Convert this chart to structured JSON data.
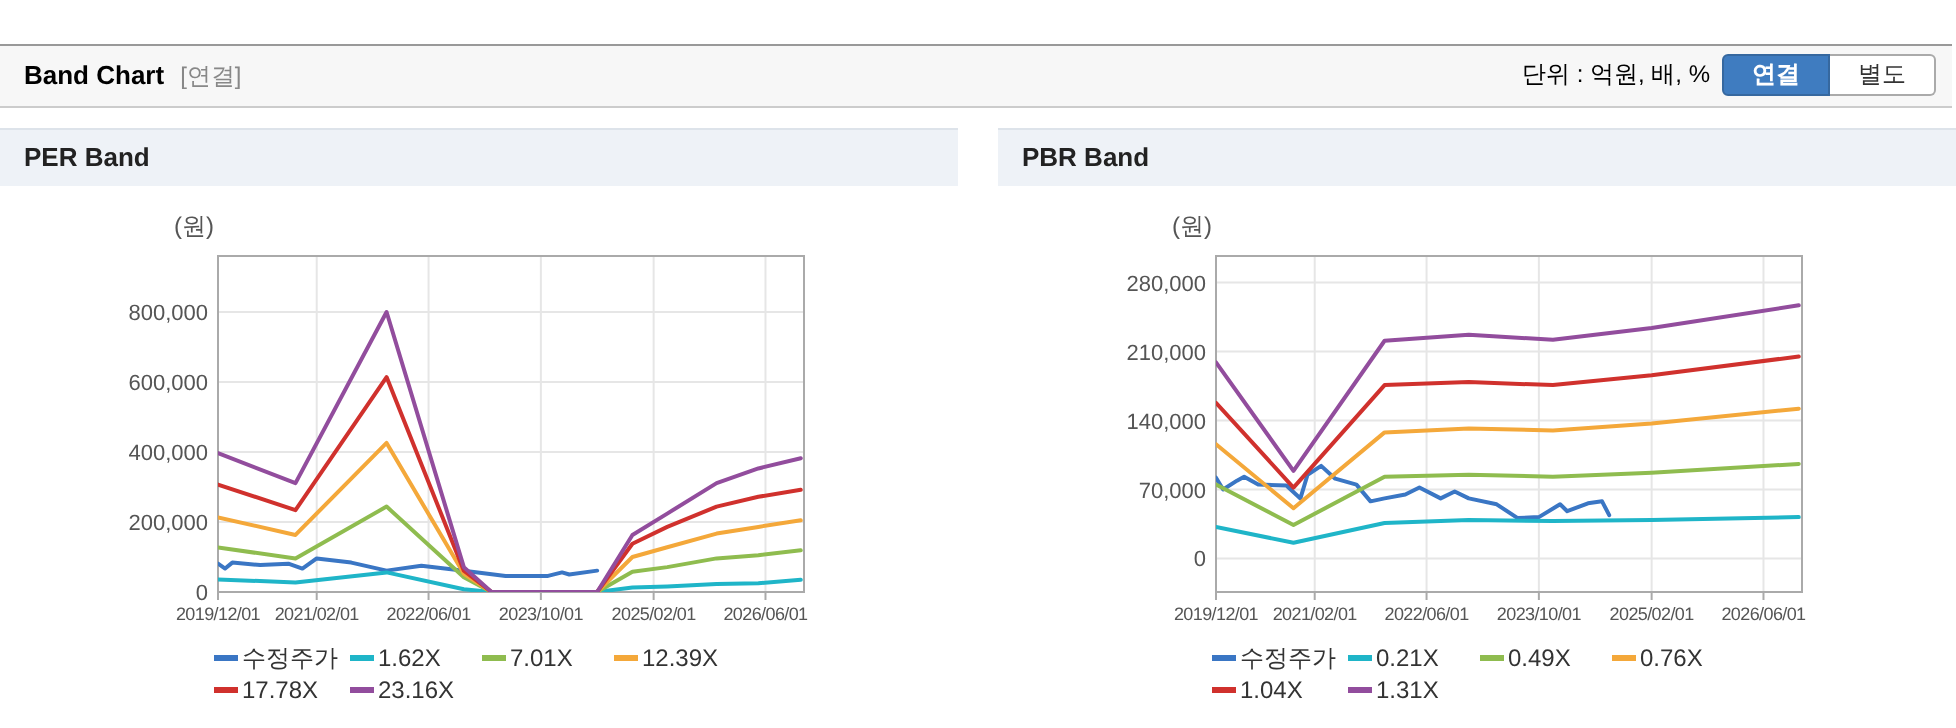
{
  "chart_data": [
    {
      "type": "other",
      "title": "Band Chart",
      "annotations": [
        "[연결]",
        "단위 : 억원, 배, %",
        "연결",
        "별도"
      ]
    },
    {
      "type": "line",
      "title": "PER Band",
      "ylabel": "(원)",
      "legend": "bottom",
      "grid": true,
      "xlim": [
        "2019-12-01",
        "2026-11-15"
      ],
      "ylim": [
        0,
        960000
      ],
      "xticks": [
        {
          "value": "2019-12-01",
          "label": "2019/12/01"
        },
        {
          "value": "2021-02-01",
          "label": "2021/02/01"
        },
        {
          "value": "2022-06-01",
          "label": "2022/06/01"
        },
        {
          "value": "2023-10-01",
          "label": "2023/10/01"
        },
        {
          "value": "2025-02-01",
          "label": "2025/02/01"
        },
        {
          "value": "2026-06-01",
          "label": "2026/06/01"
        }
      ],
      "yticks": [
        0,
        {
          "value": 200000,
          "label": "200,000"
        },
        {
          "value": 400000,
          "label": "400,000"
        },
        {
          "value": 600000,
          "label": "600,000"
        },
        {
          "value": 800000,
          "label": "800,000"
        }
      ],
      "series": [
        {
          "name": "수정주가",
          "color": "#3a76c4",
          "x": [
            "2019-12",
            "2020-01",
            "2020-02",
            "2020-06",
            "2020-10",
            "2020-12",
            "2021-02",
            "2021-07",
            "2021-12",
            "2022-05",
            "2022-11",
            "2023-05",
            "2023-11",
            "2024-01",
            "2024-02",
            "2024-06"
          ],
          "values": [
            81000,
            67000,
            84000,
            77000,
            81000,
            67000,
            96000,
            84000,
            61000,
            75000,
            61000,
            46000,
            46000,
            56000,
            50000,
            61000
          ]
        },
        {
          "name": "1.62X",
          "color": "#1fb5c8",
          "x": [
            "2019-12",
            "2020-11",
            "2021-12",
            "2022-11",
            "2023-03",
            "2024-06",
            "2024-11",
            "2025-04",
            "2025-11",
            "2026-05",
            "2026-11"
          ],
          "values": [
            36000,
            27000,
            56000,
            8000,
            0,
            0,
            13000,
            16000,
            23000,
            25000,
            35000
          ]
        },
        {
          "name": "7.01X",
          "color": "#8fbc4f",
          "x": [
            "2019-12",
            "2020-11",
            "2021-12",
            "2022-11",
            "2023-03",
            "2024-06",
            "2024-11",
            "2025-04",
            "2025-11",
            "2026-05",
            "2026-11"
          ],
          "values": [
            127000,
            96000,
            244000,
            42000,
            0,
            0,
            58000,
            71000,
            96000,
            105000,
            119000
          ]
        },
        {
          "name": "12.39X",
          "color": "#f4a83a",
          "x": [
            "2019-12",
            "2020-11",
            "2021-12",
            "2022-11",
            "2023-03",
            "2024-06",
            "2024-11",
            "2025-04",
            "2025-11",
            "2026-05",
            "2026-11"
          ],
          "values": [
            213000,
            163000,
            426000,
            52000,
            0,
            0,
            100000,
            128000,
            167000,
            186000,
            205000
          ]
        },
        {
          "name": "17.78X",
          "color": "#d0312d",
          "x": [
            "2019-12",
            "2020-11",
            "2021-12",
            "2022-11",
            "2023-03",
            "2024-06",
            "2024-11",
            "2025-04",
            "2025-11",
            "2026-05",
            "2026-11"
          ],
          "values": [
            307000,
            234000,
            614000,
            61000,
            0,
            0,
            138000,
            186000,
            244000,
            272000,
            292000
          ]
        },
        {
          "name": "23.16X",
          "color": "#924d9d",
          "x": [
            "2019-12",
            "2020-11",
            "2021-12",
            "2022-11",
            "2023-03",
            "2024-06",
            "2024-11",
            "2025-04",
            "2025-11",
            "2026-05",
            "2026-11"
          ],
          "values": [
            397000,
            311000,
            800000,
            71000,
            0,
            0,
            163000,
            224000,
            311000,
            353000,
            382000
          ]
        }
      ]
    },
    {
      "type": "line",
      "title": "PBR Band",
      "ylabel": "(원)",
      "legend": "bottom",
      "grid": true,
      "xlim": [
        "2019-12-01",
        "2026-11-15"
      ],
      "ylim": [
        -34000,
        307000
      ],
      "xticks": [
        {
          "value": "2019-12-01",
          "label": "2019/12/01"
        },
        {
          "value": "2021-02-01",
          "label": "2021/02/01"
        },
        {
          "value": "2022-06-01",
          "label": "2022/06/01"
        },
        {
          "value": "2023-10-01",
          "label": "2023/10/01"
        },
        {
          "value": "2025-02-01",
          "label": "2025/02/01"
        },
        {
          "value": "2026-06-01",
          "label": "2026/06/01"
        }
      ],
      "yticks": [
        0,
        {
          "value": 70000,
          "label": "70,000"
        },
        {
          "value": 140000,
          "label": "140,000"
        },
        {
          "value": 210000,
          "label": "210,000"
        },
        {
          "value": 280000,
          "label": "280,000"
        }
      ],
      "series": [
        {
          "name": "수정주가",
          "color": "#3a76c4",
          "x": [
            "2019-12",
            "2020-01",
            "2020-03",
            "2020-04",
            "2020-06",
            "2020-10",
            "2020-12",
            "2021-01",
            "2021-03",
            "2021-05",
            "2021-08",
            "2021-10",
            "2021-12",
            "2022-03",
            "2022-05",
            "2022-08",
            "2022-10",
            "2022-12",
            "2023-04",
            "2023-07",
            "2023-10",
            "2024-01",
            "2024-02",
            "2024-05",
            "2024-07",
            "2024-08"
          ],
          "values": [
            82000,
            70000,
            79000,
            83000,
            75000,
            74000,
            61000,
            85000,
            94000,
            81000,
            75000,
            58000,
            61000,
            65000,
            72000,
            61000,
            68000,
            61000,
            55000,
            41000,
            42000,
            55000,
            48000,
            56000,
            58000,
            44000
          ]
        },
        {
          "name": "0.21X",
          "color": "#1fb5c8",
          "x": [
            "2019-12",
            "2020-11",
            "2021-12",
            "2022-12",
            "2023-12",
            "2025-02",
            "2026-11"
          ],
          "values": [
            32000,
            16000,
            36000,
            39000,
            38000,
            39000,
            42000
          ]
        },
        {
          "name": "0.49X",
          "color": "#8fbc4f",
          "x": [
            "2019-12",
            "2020-11",
            "2021-12",
            "2022-12",
            "2023-12",
            "2025-02",
            "2026-11"
          ],
          "values": [
            75000,
            34000,
            83000,
            85000,
            83000,
            87000,
            96000
          ]
        },
        {
          "name": "0.76X",
          "color": "#f4a83a",
          "x": [
            "2019-12",
            "2020-11",
            "2021-12",
            "2022-12",
            "2023-12",
            "2025-02",
            "2026-11"
          ],
          "values": [
            116000,
            51000,
            128000,
            132000,
            130000,
            137000,
            152000
          ]
        },
        {
          "name": "1.04X",
          "color": "#d0312d",
          "x": [
            "2019-12",
            "2020-11",
            "2021-12",
            "2022-12",
            "2023-12",
            "2025-02",
            "2026-11"
          ],
          "values": [
            158000,
            72000,
            176000,
            179000,
            176000,
            186000,
            205000
          ]
        },
        {
          "name": "1.31X",
          "color": "#924d9d",
          "x": [
            "2019-12",
            "2020-11",
            "2021-12",
            "2022-12",
            "2023-12",
            "2025-02",
            "2026-11"
          ],
          "values": [
            199000,
            89000,
            221000,
            227000,
            222000,
            234000,
            257000
          ]
        }
      ]
    }
  ]
}
